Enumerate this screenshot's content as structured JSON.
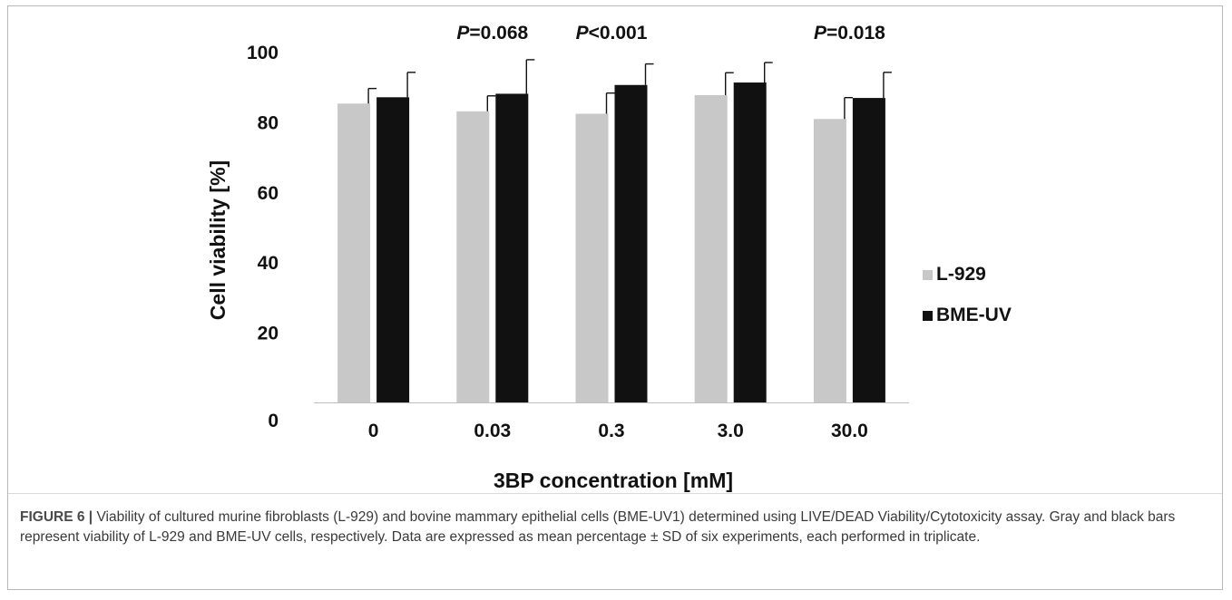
{
  "chart_data": {
    "type": "bar",
    "categories": [
      "0",
      "0.03",
      "0.3",
      "3.0",
      "30.0"
    ],
    "series": [
      {
        "name": "L-929",
        "color": "#c8c8c8",
        "values": [
          85.2,
          83.0,
          82.3,
          87.6,
          80.8
        ],
        "errors": [
          4.3,
          4.4,
          5.9,
          6.4,
          6.1
        ]
      },
      {
        "name": "BME-UV",
        "color": "#111111",
        "values": [
          87.0,
          88.0,
          90.5,
          91.2,
          86.8
        ],
        "errors": [
          7.1,
          9.7,
          6.0,
          5.7,
          7.3
        ]
      }
    ],
    "annotations": [
      {
        "category": "0.03",
        "text": "P=0.068",
        "prefix": "P",
        "rest": "=0.068"
      },
      {
        "category": "0.3",
        "text": "P<0.001",
        "prefix": "P",
        "rest": "<0.001"
      },
      {
        "category": "30.0",
        "text": "P=0.018",
        "prefix": "P",
        "rest": "=0.018"
      }
    ],
    "xlabel": "3BP concentration [mM]",
    "ylabel": "Cell viability [%]",
    "ylim": [
      0,
      100
    ],
    "yticks": [
      "0",
      "20",
      "40",
      "60",
      "80",
      "100"
    ],
    "grid": false,
    "legend_position": "right"
  },
  "caption": {
    "label": "FIGURE 6 |",
    "text": " Viability of cultured murine fibroblasts (L-929) and bovine mammary epithelial cells (BME-UV1) determined using LIVE/DEAD Viability/Cytotoxicity assay. Gray and black bars represent viability of L-929 and BME-UV cells, respectively. Data are expressed as mean percentage ± SD of six experiments, each performed in triplicate."
  }
}
